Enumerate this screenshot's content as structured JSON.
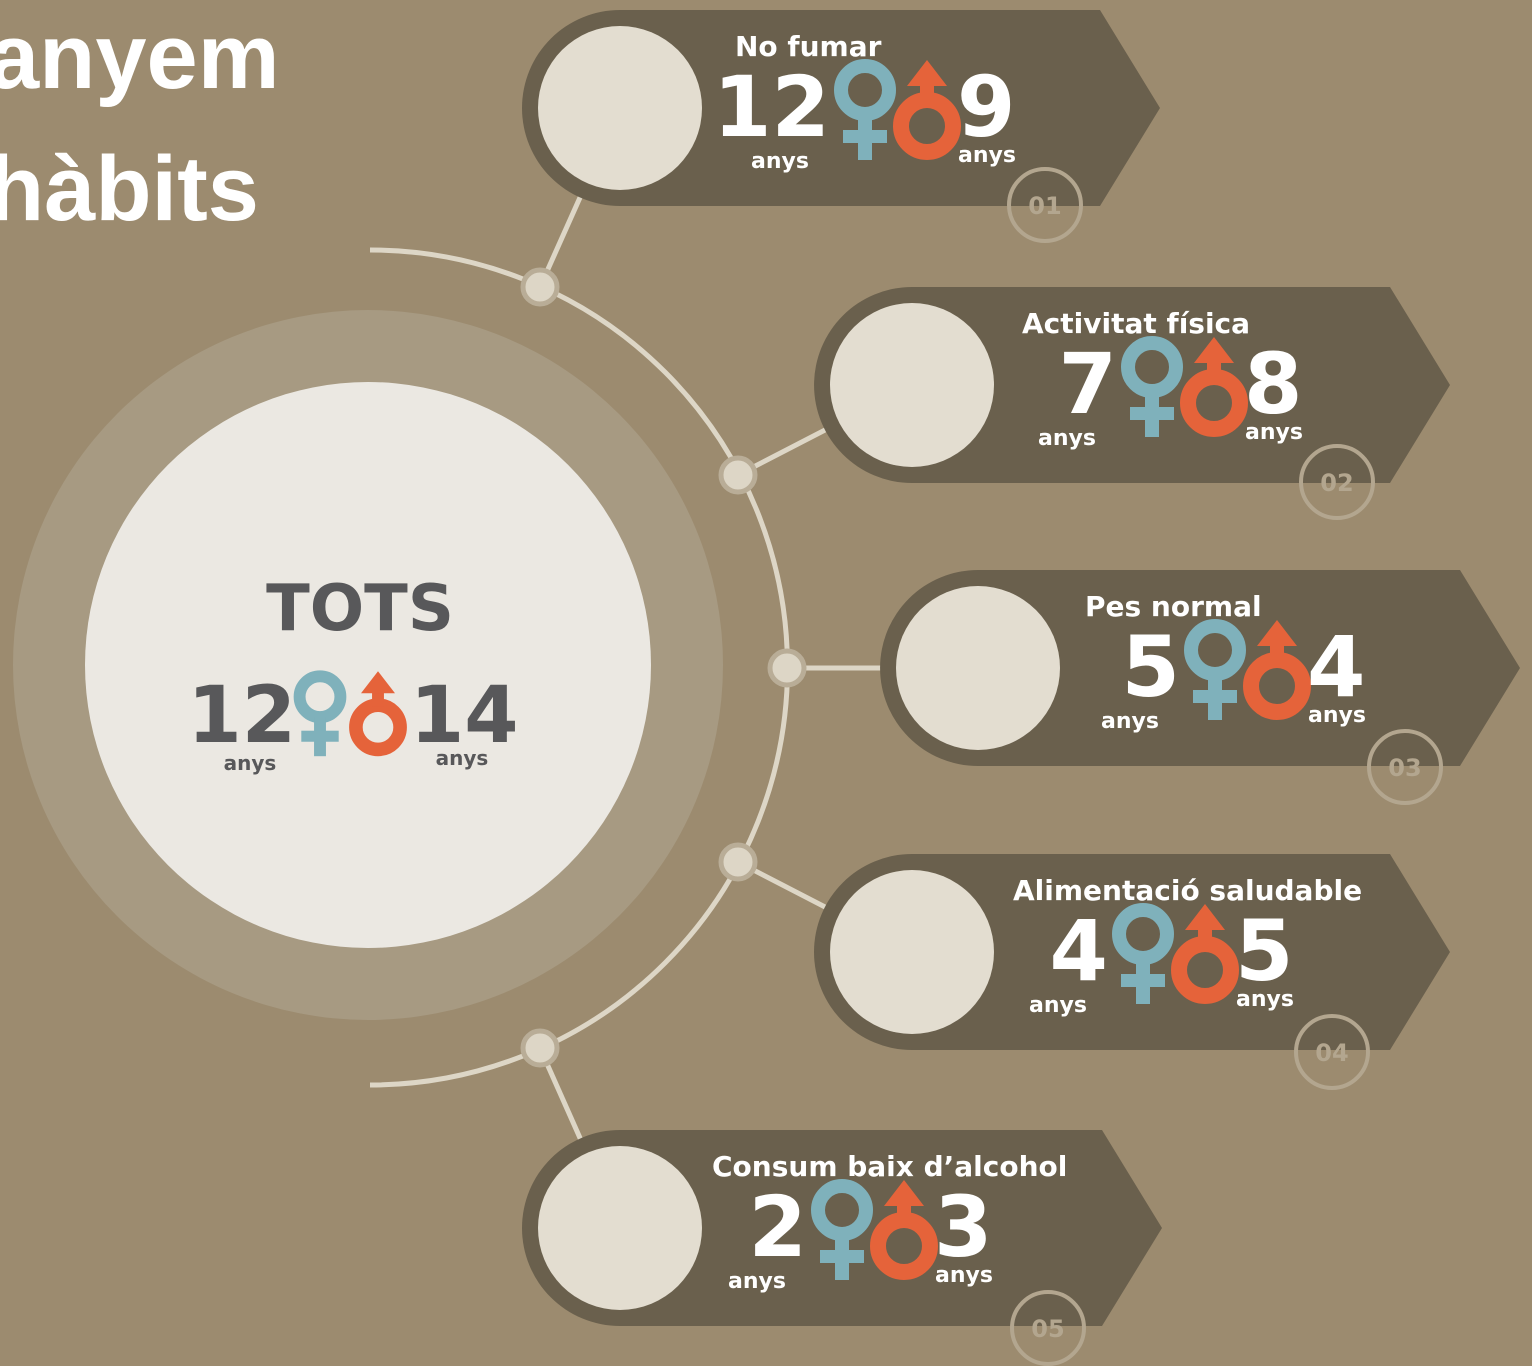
{
  "header": {
    "title_lines": [
      "anyem",
      "hàbits"
    ]
  },
  "total": {
    "label": "TOTS",
    "female": 12,
    "male": 14,
    "female_unit": "anys",
    "male_unit": "anys"
  },
  "items": [
    {
      "number": "01",
      "title": "No fumar",
      "female": 12,
      "male": 9,
      "female_unit": "anys",
      "male_unit": "anys"
    },
    {
      "number": "02",
      "title": "Activitat física",
      "female": 7,
      "male": 8,
      "female_unit": "anys",
      "male_unit": "anys"
    },
    {
      "number": "03",
      "title": "Pes normal",
      "female": 5,
      "male": 4,
      "female_unit": "anys",
      "male_unit": "anys"
    },
    {
      "number": "04",
      "title": "Alimentació saludable",
      "female": 4,
      "male": 5,
      "female_unit": "anys",
      "male_unit": "anys"
    },
    {
      "number": "05",
      "title": "Consum baix d’alcohol",
      "female": 2,
      "male": 3,
      "female_unit": "anys",
      "male_unit": "anys"
    }
  ]
}
